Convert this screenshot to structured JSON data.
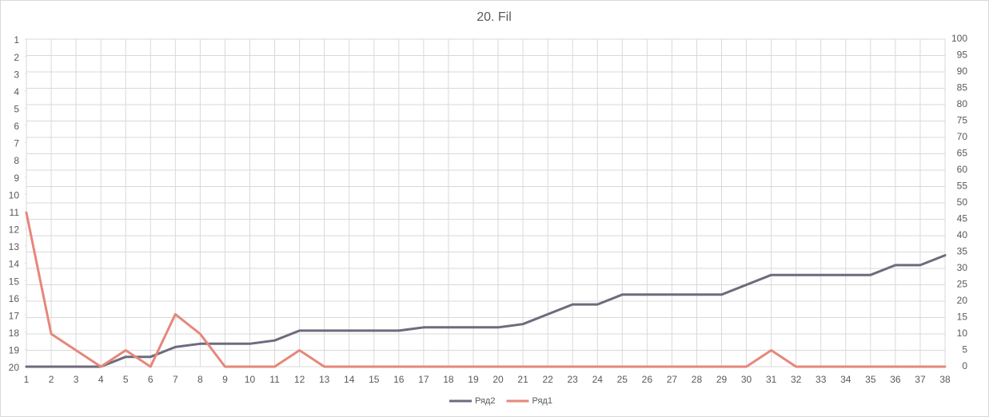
{
  "chart_data": {
    "type": "line",
    "title": "20. Fil",
    "categories": [
      "1",
      "2",
      "3",
      "4",
      "5",
      "6",
      "7",
      "8",
      "9",
      "10",
      "11",
      "12",
      "13",
      "14",
      "15",
      "16",
      "17",
      "18",
      "19",
      "20",
      "21",
      "22",
      "23",
      "24",
      "25",
      "26",
      "27",
      "28",
      "29",
      "30",
      "31",
      "32",
      "33",
      "34",
      "35",
      "36",
      "37",
      "38"
    ],
    "ylim": [
      20,
      1
    ],
    "yticks": [
      1,
      2,
      3,
      4,
      5,
      6,
      7,
      8,
      9,
      10,
      11,
      12,
      13,
      14,
      15,
      16,
      17,
      18,
      19,
      20
    ],
    "y2lim": [
      0,
      100
    ],
    "y2ticks": [
      0,
      5,
      10,
      15,
      20,
      25,
      30,
      35,
      40,
      45,
      50,
      55,
      60,
      65,
      70,
      75,
      80,
      85,
      90,
      95,
      100
    ],
    "grid": true,
    "legend": "bottom",
    "series": [
      {
        "name": "Ряд2",
        "color": "#6f6a7d",
        "axis": "y2",
        "values": [
          0,
          0,
          0,
          0,
          3,
          3,
          6,
          7,
          7,
          7,
          8,
          11,
          11,
          11,
          11,
          11,
          12,
          12,
          12,
          12,
          13,
          16,
          19,
          19,
          22,
          22,
          22,
          22,
          22,
          25,
          28,
          28,
          28,
          28,
          28,
          31,
          31,
          34
        ]
      },
      {
        "name": "Ряд1",
        "color": "#e6877a",
        "axis": "y2",
        "values": [
          47,
          10,
          5,
          0,
          5,
          0,
          16,
          10,
          0,
          0,
          0,
          5,
          0,
          0,
          0,
          0,
          0,
          0,
          0,
          0,
          0,
          0,
          0,
          0,
          0,
          0,
          0,
          0,
          0,
          0,
          5,
          0,
          0,
          0,
          0,
          0,
          0,
          0
        ]
      }
    ]
  }
}
